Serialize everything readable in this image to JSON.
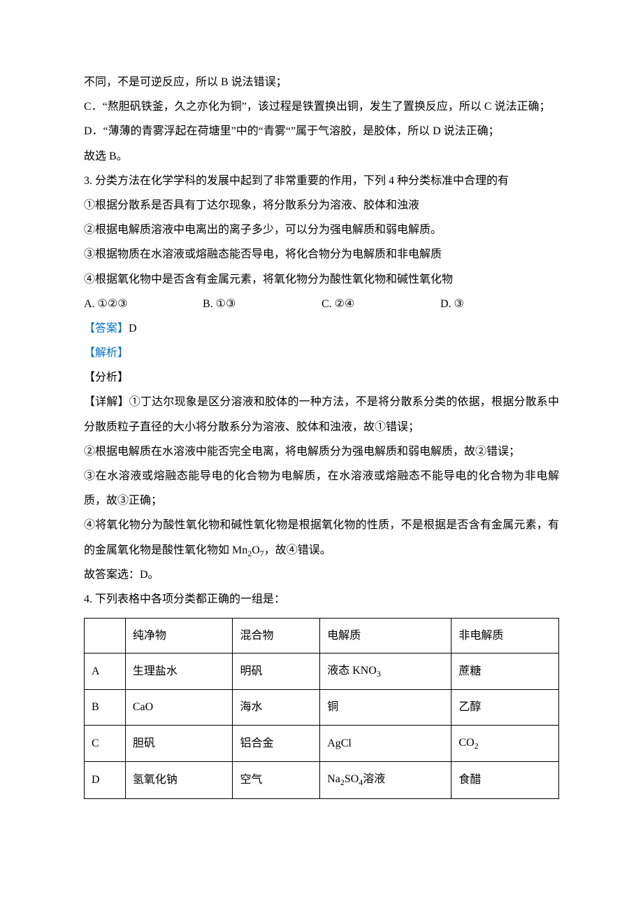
{
  "p1": "不同，不是可逆反应，所以 B 说法错误；",
  "p2": "C．“熬胆矾铁釜，久之亦化为铜”，该过程是铁置换出铜，发生了置换反应，所以 C 说法正确；",
  "p3": "D．“薄薄的青雾浮起在荷塘里”中的“青雾“”属于气溶胶，是胶体，所以 D 说法正确；",
  "p4": "故选 B。",
  "q3_stem": "3. 分类方法在化学学科的发展中起到了非常重要的作用，下列 4 种分类标准中合理的有",
  "q3_item1": "①根据分散系是否具有丁达尔现象，将分散系分为溶液、胶体和浊液",
  "q3_item2": "②根据电解质溶液中电离出的离子多少，可以分为强电解质和弱电解质。",
  "q3_item3": "③根据物质在水溶液或熔融态能否导电，将化合物分为电解质和非电解质",
  "q3_item4": "④根据氧化物中是否含有金属元素，将氧化物分为酸性氧化物和碱性氧化物",
  "q3_optA": "A. ①②③",
  "q3_optB": "B. ①③",
  "q3_optC": "C. ②④",
  "q3_optD": "D. ③",
  "answer_label": "【答案】",
  "q3_answer": "D",
  "analysis_label": "【解析】",
  "fenxi_label": "【分析】",
  "xiangjie_prefix": "【详解】",
  "q3_detail1": "①丁达尔现象是区分溶液和胶体的一种方法，不是将分散系分类的依据，根据分散系中分散质粒子直径的大小将分散系分为溶液、胶体和浊液，故①错误；",
  "q3_detail2": "②根据电解质在水溶液中能否完全电离，将电解质分为强电解质和弱电解质，故②错误；",
  "q3_detail3": "③在水溶液或熔融态能导电的化合物为电解质，在水溶液或熔融态不能导电的化合物为非电解质，故③正确；",
  "q3_detail4_a": "④将氧化物分为酸性氧化物和碱性氧化物是根据氧化物的性质，不是根据是否含有金属元素，有的金属氧化物是酸性氧化物如 Mn",
  "q3_detail4_b": "O",
  "q3_detail4_c": "，故④错误。",
  "q3_conclusion": "故答案选：D。",
  "q4_stem": "4. 下列表格中各项分类都正确的一组是：",
  "table": {
    "header": {
      "c0": "",
      "c1": "纯净物",
      "c2": "混合物",
      "c3": "电解质",
      "c4": "非电解质"
    },
    "rowA": {
      "c0": "A",
      "c1": "生理盐水",
      "c2": "明矾",
      "c3_a": "液态 KNO",
      "c4": "蔗糖"
    },
    "rowB": {
      "c0": "B",
      "c1": "CaO",
      "c2": "海水",
      "c3": "铜",
      "c4": "乙醇"
    },
    "rowC": {
      "c0": "C",
      "c1": "胆矾",
      "c2": "铝合金",
      "c3": "AgCl",
      "c4_a": "CO"
    },
    "rowD": {
      "c0": "D",
      "c1": "氢氧化钠",
      "c2": "空气",
      "c3_a": "Na",
      "c3_b": "SO",
      "c3_c": "溶液",
      "c4": "食醋"
    }
  },
  "sub2": "2",
  "sub3": "3",
  "sub4": "4",
  "sub7": "7"
}
